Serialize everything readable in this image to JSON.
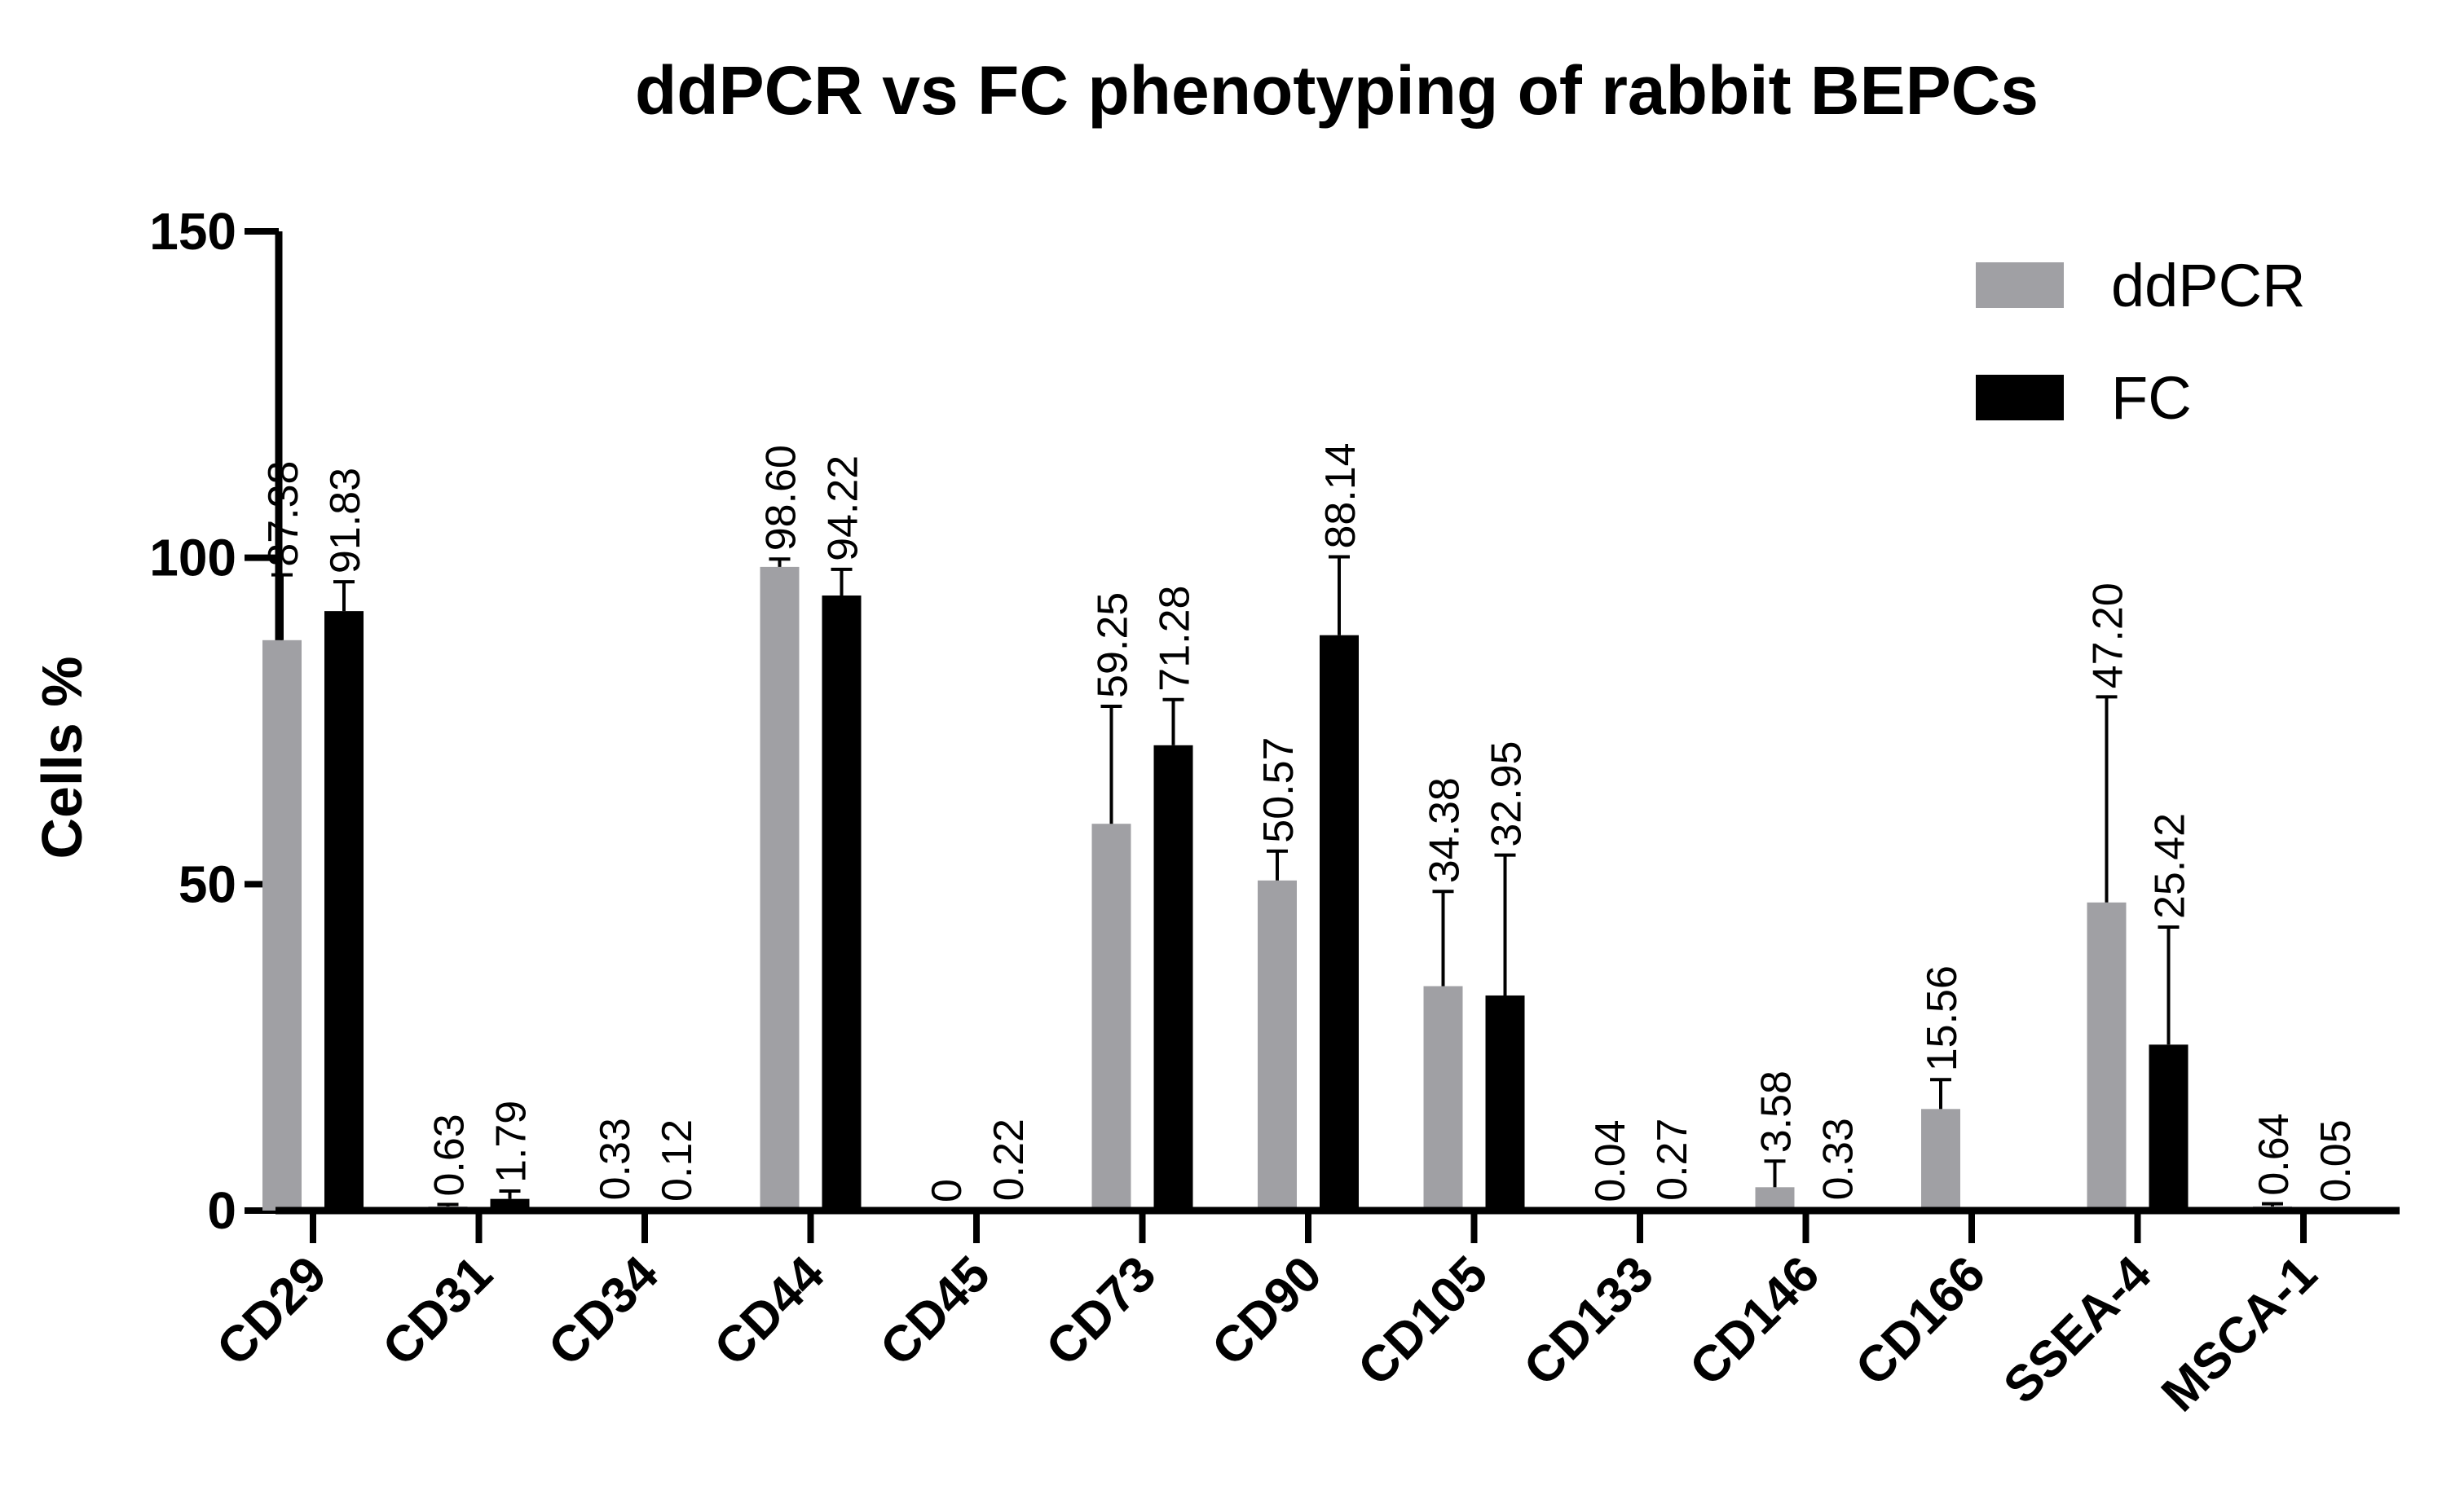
{
  "chart_data": {
    "type": "bar",
    "title": "ddPCR vs FC phenotyping of rabbit BEPCs",
    "xlabel": "",
    "ylabel": "Cells %",
    "ylim": [
      0,
      150
    ],
    "yticks": [
      "0",
      "50",
      "100",
      "150"
    ],
    "categories": [
      "CD29",
      "CD31",
      "CD34",
      "CD44",
      "CD45",
      "CD73",
      "CD90",
      "CD105",
      "CD133",
      "CD146",
      "CD166",
      "SSEA-4",
      "MSCA-1"
    ],
    "series": [
      {
        "name": "ddPCR",
        "color": "#a0a0a4",
        "values": [
          87.38,
          0.63,
          0.33,
          98.6,
          0,
          59.25,
          50.57,
          34.38,
          0.04,
          3.58,
          15.56,
          47.2,
          0.64
        ],
        "labels": [
          "87.38",
          "0.63",
          "0.33",
          "98.60",
          "0",
          "59.25",
          "50.57",
          "34.38",
          "0.04",
          "3.58",
          "15.56",
          "47.20",
          "0.64"
        ],
        "errors": [
          10,
          0.3,
          0,
          1.2,
          0,
          18,
          4.5,
          14.5,
          0,
          4,
          4.5,
          31.5,
          0.4
        ]
      },
      {
        "name": "FC",
        "color": "#000000",
        "values": [
          91.83,
          1.79,
          0.12,
          94.22,
          0.22,
          71.28,
          88.14,
          32.95,
          0.27,
          0.33,
          null,
          25.42,
          0.05
        ],
        "labels": [
          "91.83",
          "1.79",
          "0.12",
          "94.22",
          "0.22",
          "71.28",
          "88.14",
          "32.95",
          "0.27",
          "0.33",
          "",
          "25.42",
          "0.05"
        ],
        "errors": [
          4.5,
          1.2,
          0,
          4,
          0,
          7,
          12,
          21.5,
          0,
          0,
          0,
          18,
          0
        ]
      }
    ],
    "legend": {
      "position": "top-right"
    }
  }
}
